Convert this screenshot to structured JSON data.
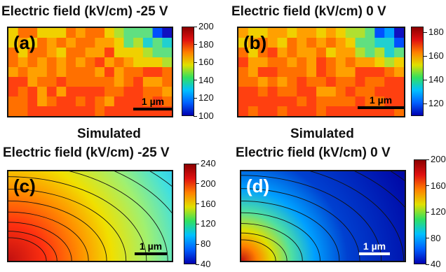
{
  "titles": {
    "a": "Electric field (kV/cm)   -25 V",
    "b": "Electric field (kV/cm)   0 V",
    "sim_heading_c": "Simulated",
    "sim_heading_d": "Simulated",
    "c": "Electric field (kV/cm)  -25 V",
    "d": "Electric field (kV/cm)   0 V"
  },
  "panels": {
    "a": {
      "label": "(a)",
      "scale": "1 µm",
      "label_color": "#000000",
      "scale_color": "#000000"
    },
    "b": {
      "label": "(b)",
      "scale": "1 µm",
      "label_color": "#000000",
      "scale_color": "#000000"
    },
    "c": {
      "label": "(c)",
      "scale": "1 µm",
      "label_color": "#000000",
      "scale_color": "#000000"
    },
    "d": {
      "label": "(d)",
      "scale": "1 µm",
      "label_color": "#ffffff",
      "scale_color": "#ffffff"
    }
  },
  "colorbars": {
    "a": [
      "200",
      "180",
      "160",
      "140",
      "120",
      "100"
    ],
    "b": [
      "180",
      "160",
      "140",
      "120"
    ],
    "c": [
      "240",
      "200",
      "160",
      "120",
      "80",
      "40"
    ],
    "d": [
      "200",
      "160",
      "120",
      "80",
      "40"
    ]
  }
}
